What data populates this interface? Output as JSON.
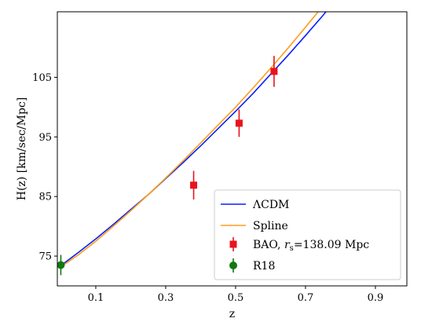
{
  "chart_data": {
    "type": "line",
    "xlabel": "z",
    "ylabel": "H(z) [km/sec/Mpc]",
    "xlim": [
      -0.01,
      0.99
    ],
    "ylim": [
      70,
      116
    ],
    "xticks": [
      0.1,
      0.3,
      0.5,
      0.7,
      0.9
    ],
    "xtick_labels": [
      "0.1",
      "0.3",
      "0.5",
      "0.7",
      "0.9"
    ],
    "yticks": [
      75,
      85,
      95,
      105
    ],
    "ytick_labels": [
      "75",
      "85",
      "95",
      "105"
    ],
    "grid": false,
    "legend_position": "lower-right",
    "colors": {
      "lcdm": "#0a1eff",
      "spline": "#ff9e1a",
      "bao": "#e8131d",
      "r18": "#0e7a0e"
    },
    "series": [
      {
        "name": "ΛCDM",
        "kind": "line",
        "x": [
          0.0,
          0.05,
          0.1,
          0.15,
          0.2,
          0.25,
          0.3,
          0.35,
          0.4,
          0.45,
          0.5,
          0.55,
          0.6,
          0.65,
          0.7,
          0.75,
          0.8,
          0.82
        ],
        "y": [
          73.4,
          75.6,
          77.9,
          80.3,
          82.8,
          85.3,
          88.0,
          90.7,
          93.5,
          96.4,
          99.3,
          102.3,
          105.5,
          108.7,
          112.0,
          115.4,
          119.0,
          120.4
        ]
      },
      {
        "name": "Spline",
        "kind": "line",
        "x": [
          0.0,
          0.05,
          0.1,
          0.15,
          0.2,
          0.25,
          0.3,
          0.35,
          0.4,
          0.45,
          0.5,
          0.55,
          0.6,
          0.65,
          0.7,
          0.75,
          0.8,
          0.82
        ],
        "y": [
          73.2,
          75.2,
          77.5,
          80.0,
          82.6,
          85.3,
          88.1,
          91.0,
          94.0,
          97.0,
          100.0,
          103.2,
          106.5,
          109.9,
          113.4,
          117.0,
          120.7,
          122.2
        ]
      },
      {
        "name_prefix": "BAO, ",
        "name_math": "r",
        "name_sub": "s",
        "name_suffix": "=138.09 Mpc",
        "kind": "errorbar",
        "marker": "square",
        "x": [
          0.38,
          0.51,
          0.61
        ],
        "y": [
          86.9,
          97.3,
          106.0
        ],
        "err": [
          2.4,
          2.3,
          2.6
        ]
      },
      {
        "name": "R18",
        "kind": "errorbar",
        "marker": "circle",
        "x": [
          0.0
        ],
        "y": [
          73.5
        ],
        "err": [
          1.7
        ]
      }
    ]
  }
}
